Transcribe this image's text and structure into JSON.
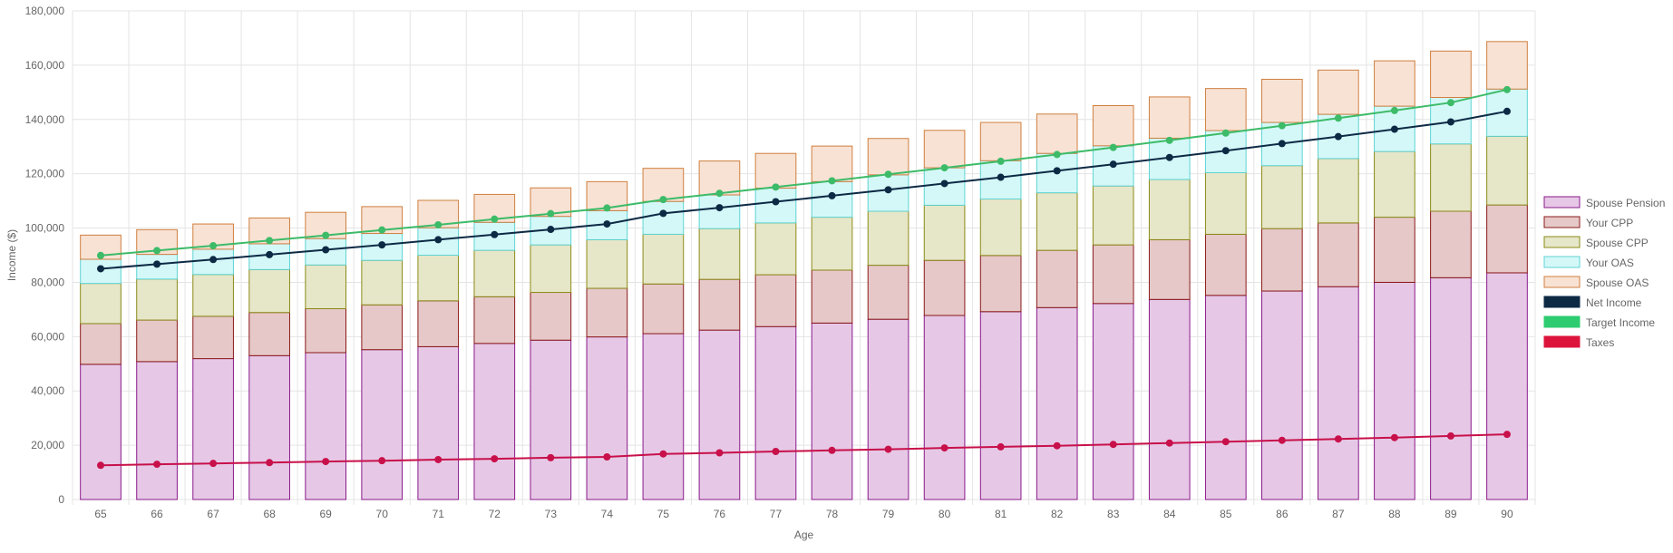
{
  "chart_data": {
    "type": "bar",
    "stacked": true,
    "xlabel": "Age",
    "ylabel": "Income ($)",
    "ylim": [
      0,
      180000
    ],
    "y_ticks": [
      0,
      20000,
      40000,
      60000,
      80000,
      100000,
      120000,
      140000,
      160000,
      180000
    ],
    "y_tick_labels": [
      "0",
      "20,000",
      "40,000",
      "60,000",
      "80,000",
      "100,000",
      "120,000",
      "140,000",
      "160,000",
      "180,000"
    ],
    "grid": true,
    "legend_position": "right",
    "categories": [
      "65",
      "66",
      "67",
      "68",
      "69",
      "70",
      "71",
      "72",
      "73",
      "74",
      "75",
      "76",
      "77",
      "78",
      "79",
      "80",
      "81",
      "82",
      "83",
      "84",
      "85",
      "86",
      "87",
      "88",
      "89",
      "90"
    ],
    "series": [
      {
        "name": "Spouse Pension",
        "kind": "bar",
        "fill": "#e6c8e6",
        "stroke": "#8a1a8a",
        "values": [
          49800,
          50800,
          51900,
          53000,
          54100,
          55200,
          56300,
          57500,
          58700,
          59900,
          61100,
          62400,
          63700,
          65000,
          66400,
          67800,
          69200,
          70700,
          72200,
          73700,
          75200,
          76800,
          78400,
          80000,
          81700,
          83500
        ]
      },
      {
        "name": "Your CPP",
        "kind": "bar",
        "fill": "#e6c8c8",
        "stroke": "#8b1a1a",
        "values": [
          15000,
          15300,
          15600,
          15900,
          16200,
          16500,
          16900,
          17200,
          17600,
          17900,
          18300,
          18700,
          19100,
          19500,
          19900,
          20300,
          20700,
          21100,
          21600,
          22000,
          22500,
          23000,
          23500,
          24000,
          24500,
          25000
        ]
      },
      {
        "name": "Spouse CPP",
        "kind": "bar",
        "fill": "#e6e6c8",
        "stroke": "#8b8b1a",
        "values": [
          14800,
          15100,
          15400,
          15800,
          16100,
          16400,
          16800,
          17100,
          17500,
          17900,
          18300,
          18700,
          19100,
          19500,
          19900,
          20300,
          20800,
          21200,
          21700,
          22200,
          22700,
          23200,
          23700,
          24200,
          24800,
          25300
        ]
      },
      {
        "name": "Your OAS",
        "kind": "bar",
        "fill": "#d4f8f8",
        "stroke": "#5fd3d3",
        "values": [
          8900,
          9100,
          9300,
          9500,
          9700,
          9900,
          10100,
          10300,
          10500,
          10700,
          12100,
          12400,
          12800,
          13100,
          13400,
          13800,
          14100,
          14500,
          14800,
          15200,
          15500,
          15900,
          16300,
          16700,
          17100,
          17400
        ]
      },
      {
        "name": "Spouse OAS",
        "kind": "bar",
        "fill": "#f8e2d4",
        "stroke": "#cf7f3f",
        "values": [
          8900,
          9100,
          9300,
          9500,
          9700,
          9900,
          10100,
          10300,
          10500,
          10700,
          12200,
          12500,
          12800,
          13100,
          13400,
          13800,
          14100,
          14500,
          14800,
          15200,
          15500,
          15900,
          16300,
          16700,
          17100,
          17500
        ]
      },
      {
        "name": "Net Income",
        "kind": "line",
        "color": "#0d2a45",
        "values": [
          85000,
          86700,
          88400,
          90200,
          92000,
          93800,
          95700,
          97600,
          99500,
          101500,
          105400,
          107500,
          109700,
          111900,
          114100,
          116400,
          118700,
          121100,
          123500,
          126000,
          128500,
          131100,
          133700,
          136400,
          139100,
          143000
        ]
      },
      {
        "name": "Target Income",
        "kind": "line",
        "color": "#3dbb68",
        "values": [
          89900,
          91700,
          93500,
          95400,
          97300,
          99300,
          101200,
          103300,
          105300,
          107400,
          110500,
          112800,
          115100,
          117400,
          119800,
          122200,
          124600,
          127100,
          129700,
          132300,
          135000,
          137700,
          140500,
          143300,
          146200,
          151000
        ]
      },
      {
        "name": "Taxes",
        "kind": "line",
        "color": "#c8104a",
        "values": [
          12600,
          13000,
          13300,
          13600,
          14000,
          14300,
          14700,
          15000,
          15400,
          15700,
          16800,
          17200,
          17700,
          18100,
          18500,
          19000,
          19400,
          19800,
          20300,
          20800,
          21300,
          21800,
          22300,
          22800,
          23400,
          24000
        ]
      }
    ],
    "legend_swatches": [
      {
        "name": "Spouse Pension",
        "fill": "#e6c8e6",
        "stroke": "#8a1a8a"
      },
      {
        "name": "Your CPP",
        "fill": "#e6c8c8",
        "stroke": "#8b1a1a"
      },
      {
        "name": "Spouse CPP",
        "fill": "#e6e6c8",
        "stroke": "#8b8b1a"
      },
      {
        "name": "Your OAS",
        "fill": "#d4f8f8",
        "stroke": "#5fd3d3"
      },
      {
        "name": "Spouse OAS",
        "fill": "#f8e2d4",
        "stroke": "#cf7f3f"
      },
      {
        "name": "Net Income",
        "fill": "#0d2a45",
        "stroke": "#0d2a45"
      },
      {
        "name": "Target Income",
        "fill": "#2ecc71",
        "stroke": "#2ecc71"
      },
      {
        "name": "Taxes",
        "fill": "#dc143c",
        "stroke": "#dc143c"
      }
    ]
  }
}
